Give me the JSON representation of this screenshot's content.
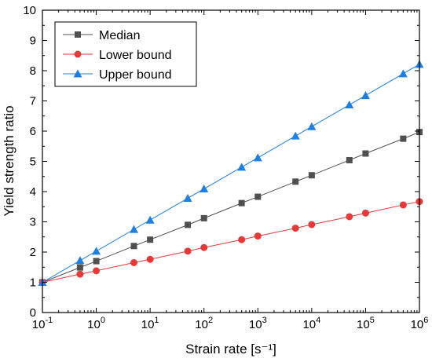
{
  "chart_data": {
    "type": "line",
    "title": "",
    "xlabel": "Strain rate [s⁻¹]",
    "ylabel": "Yield strength ratio",
    "x_scale": "log",
    "xlim": [
      0.1,
      1000000
    ],
    "ylim": [
      0,
      10
    ],
    "grid": false,
    "legend_position": "top-left",
    "x_tick_labels": [
      {
        "base": "10",
        "exp": "-1"
      },
      {
        "base": "10",
        "exp": "0"
      },
      {
        "base": "10",
        "exp": "1"
      },
      {
        "base": "10",
        "exp": "2"
      },
      {
        "base": "10",
        "exp": "3"
      },
      {
        "base": "10",
        "exp": "4"
      },
      {
        "base": "10",
        "exp": "5"
      },
      {
        "base": "10",
        "exp": "6"
      }
    ],
    "y_tick_labels": [
      "0",
      "1",
      "2",
      "3",
      "4",
      "5",
      "6",
      "7",
      "8",
      "9",
      "10"
    ],
    "x": [
      0.1,
      0.5,
      1,
      5,
      10,
      50,
      100,
      500,
      1000,
      5000,
      10000,
      50000,
      100000,
      500000,
      1000000
    ],
    "series": [
      {
        "name": "Median",
        "color": "#505050",
        "marker": "square",
        "values": [
          1.0,
          1.49,
          1.7,
          2.2,
          2.41,
          2.9,
          3.12,
          3.62,
          3.83,
          4.33,
          4.54,
          5.04,
          5.26,
          5.75,
          5.97
        ]
      },
      {
        "name": "Lower bound",
        "color": "#e53a3a",
        "marker": "circle",
        "values": [
          1.0,
          1.27,
          1.38,
          1.65,
          1.76,
          2.03,
          2.15,
          2.41,
          2.53,
          2.79,
          2.91,
          3.17,
          3.29,
          3.56,
          3.67
        ]
      },
      {
        "name": "Upper bound",
        "color": "#1f7fe0",
        "marker": "triangle",
        "values": [
          1.0,
          1.72,
          2.03,
          2.75,
          3.06,
          3.78,
          4.09,
          4.81,
          5.12,
          5.84,
          6.15,
          6.87,
          7.18,
          7.9,
          8.21
        ]
      }
    ]
  }
}
